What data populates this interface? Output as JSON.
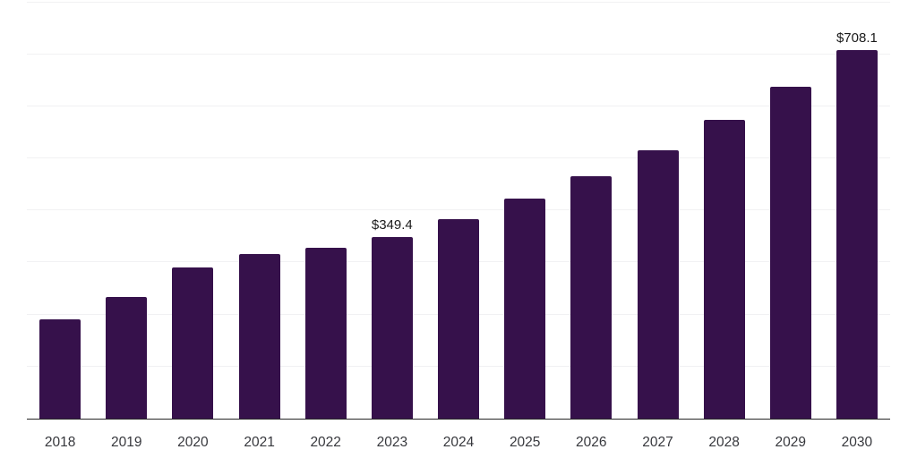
{
  "chart_data": {
    "type": "bar",
    "title": "",
    "xlabel": "",
    "ylabel": "",
    "categories": [
      "2018",
      "2019",
      "2020",
      "2021",
      "2022",
      "2023",
      "2024",
      "2025",
      "2026",
      "2027",
      "2028",
      "2029",
      "2030"
    ],
    "values": [
      191,
      234,
      290,
      317,
      328,
      349.4,
      383,
      423,
      466,
      515,
      574,
      638,
      708.1
    ],
    "bar_labels": [
      "",
      "",
      "",
      "",
      "",
      "$349.4",
      "",
      "",
      "",
      "",
      "",
      "",
      "$708.1"
    ],
    "ylim": [
      0,
      800
    ],
    "gridline_step": 100,
    "grid": true,
    "legend": "none",
    "bar_color": "#36114b",
    "grid_color": "#f1f1f3",
    "axis_color": "#262626",
    "label_color": "#1a1a1a",
    "tick_color": "#37383d"
  }
}
